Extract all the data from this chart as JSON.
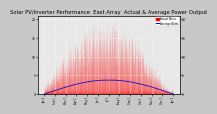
{
  "title": "Solar PV/Inverter Performance  East Array  Actual & Average Power Output",
  "title_fontsize": 3.8,
  "bg_color": "#c8c8c8",
  "plot_bg_color": "#e8e8e8",
  "area_color": "#ff0000",
  "avg_line_color": "#0000cc",
  "legend_actual": "Actual Watts",
  "legend_avg": "Average Watts",
  "legend_color_actual": "#ff0000",
  "legend_color_avg": "#0000cc",
  "grid_color": "#ffffff",
  "grid_style": "dotted",
  "max_power": 1800,
  "ytick_labels": [
    "0",
    "5",
    "10",
    "15",
    "20"
  ],
  "ytick_vals": [
    0,
    450,
    900,
    1350,
    1800
  ],
  "months": [
    "Jan 1",
    "Feb 1",
    "Mar 1",
    "Apr 1",
    "May 1",
    "Jun 1",
    "Jul 1",
    "Aug 1",
    "Sep 1",
    "Oct 1",
    "Nov 1",
    "Dec 1",
    "Jan 1"
  ],
  "seed": 42
}
